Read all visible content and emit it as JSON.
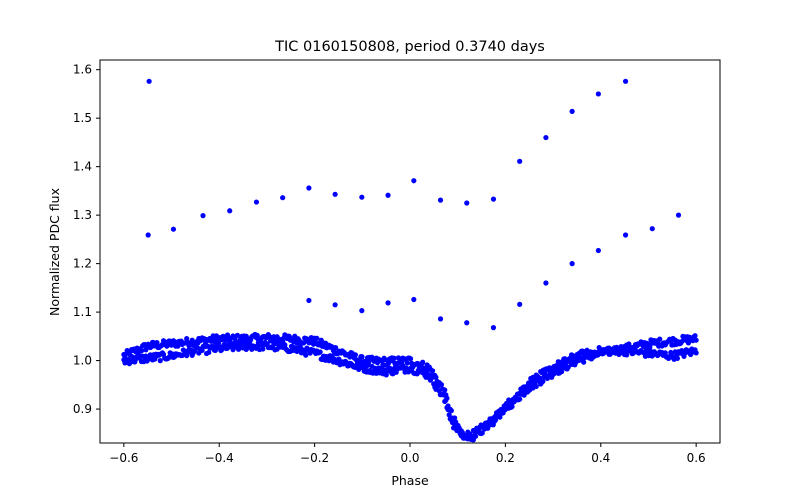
{
  "chart_data": {
    "type": "scatter",
    "title": "TIC 0160150808, period 0.3740 days",
    "xlabel": "Phase",
    "ylabel": "Normalized PDC flux",
    "xlim": [
      -0.65,
      0.65
    ],
    "ylim": [
      0.83,
      1.62
    ],
    "xticks": [
      -0.6,
      -0.4,
      -0.2,
      0.0,
      0.2,
      0.4,
      0.6
    ],
    "xtick_labels": [
      "−0.6",
      "−0.4",
      "−0.2",
      "0.0",
      "0.2",
      "0.4",
      "0.6"
    ],
    "yticks": [
      0.9,
      1.0,
      1.1,
      1.2,
      1.3,
      1.4,
      1.5,
      1.6
    ],
    "ytick_labels": [
      "0.9",
      "1.0",
      "1.1",
      "1.2",
      "1.3",
      "1.4",
      "1.5",
      "1.6"
    ],
    "grid": false,
    "legend": "none",
    "marker_color": "#0000ff",
    "series": [
      {
        "points": [
          [
            -0.547,
            1.576
          ],
          [
            -0.549,
            1.259
          ],
          [
            -0.496,
            1.271
          ],
          [
            -0.434,
            1.299
          ],
          [
            -0.378,
            1.309
          ],
          [
            -0.322,
            1.327
          ],
          [
            -0.267,
            1.336
          ],
          [
            -0.212,
            1.356
          ],
          [
            -0.157,
            1.343
          ],
          [
            -0.101,
            1.337
          ],
          [
            -0.046,
            1.341
          ],
          [
            0.008,
            1.371
          ],
          [
            0.064,
            1.331
          ],
          [
            0.119,
            1.325
          ],
          [
            0.175,
            1.333
          ],
          [
            0.23,
            1.411
          ],
          [
            0.285,
            1.46
          ],
          [
            0.34,
            1.514
          ],
          [
            0.395,
            1.55
          ],
          [
            0.452,
            1.576
          ],
          [
            -0.212,
            1.124
          ],
          [
            -0.157,
            1.115
          ],
          [
            -0.101,
            1.103
          ],
          [
            -0.046,
            1.119
          ],
          [
            0.008,
            1.126
          ],
          [
            0.064,
            1.086
          ],
          [
            0.119,
            1.078
          ],
          [
            0.175,
            1.068
          ],
          [
            0.23,
            1.116
          ],
          [
            0.285,
            1.16
          ],
          [
            0.34,
            1.2
          ],
          [
            0.395,
            1.227
          ],
          [
            0.452,
            1.259
          ],
          [
            0.508,
            1.272
          ],
          [
            0.563,
            1.3
          ]
        ],
        "tracks": [
          {
            "x": [
              -0.6,
              -0.55,
              -0.5,
              -0.45,
              -0.4,
              -0.35,
              -0.3,
              -0.25,
              -0.2,
              -0.15,
              -0.1,
              -0.05,
              0.0,
              0.04,
              0.07,
              0.09,
              0.11,
              0.13,
              0.15,
              0.17,
              0.2,
              0.25,
              0.3,
              0.35,
              0.4,
              0.45,
              0.5,
              0.55,
              0.6
            ],
            "y": [
              1.01,
              1.03,
              1.035,
              1.04,
              1.045,
              1.045,
              1.047,
              1.045,
              1.04,
              1.02,
              1.0,
              0.998,
              1.0,
              0.985,
              0.94,
              0.88,
              0.848,
              0.846,
              0.86,
              0.875,
              0.9,
              0.945,
              0.975,
              1.0,
              1.015,
              1.025,
              1.035,
              1.04,
              1.045
            ],
            "count": 520,
            "jitter": 0.008
          },
          {
            "x": [
              -0.6,
              -0.55,
              -0.5,
              -0.45,
              -0.4,
              -0.35,
              -0.3,
              -0.25,
              -0.2,
              -0.15,
              -0.1,
              -0.05,
              0.0,
              0.04,
              0.07,
              0.09,
              0.11,
              0.13,
              0.15,
              0.17,
              0.2,
              0.25,
              0.3,
              0.35,
              0.4,
              0.45,
              0.5,
              0.55,
              0.6
            ],
            "y": [
              1.0,
              1.005,
              1.01,
              1.02,
              1.025,
              1.03,
              1.03,
              1.025,
              1.015,
              1.0,
              0.985,
              0.978,
              0.985,
              0.97,
              0.925,
              0.87,
              0.845,
              0.842,
              0.855,
              0.87,
              0.905,
              0.955,
              0.985,
              1.01,
              1.02,
              1.02,
              1.015,
              1.01,
              1.02
            ],
            "count": 520,
            "jitter": 0.008
          }
        ]
      }
    ]
  }
}
